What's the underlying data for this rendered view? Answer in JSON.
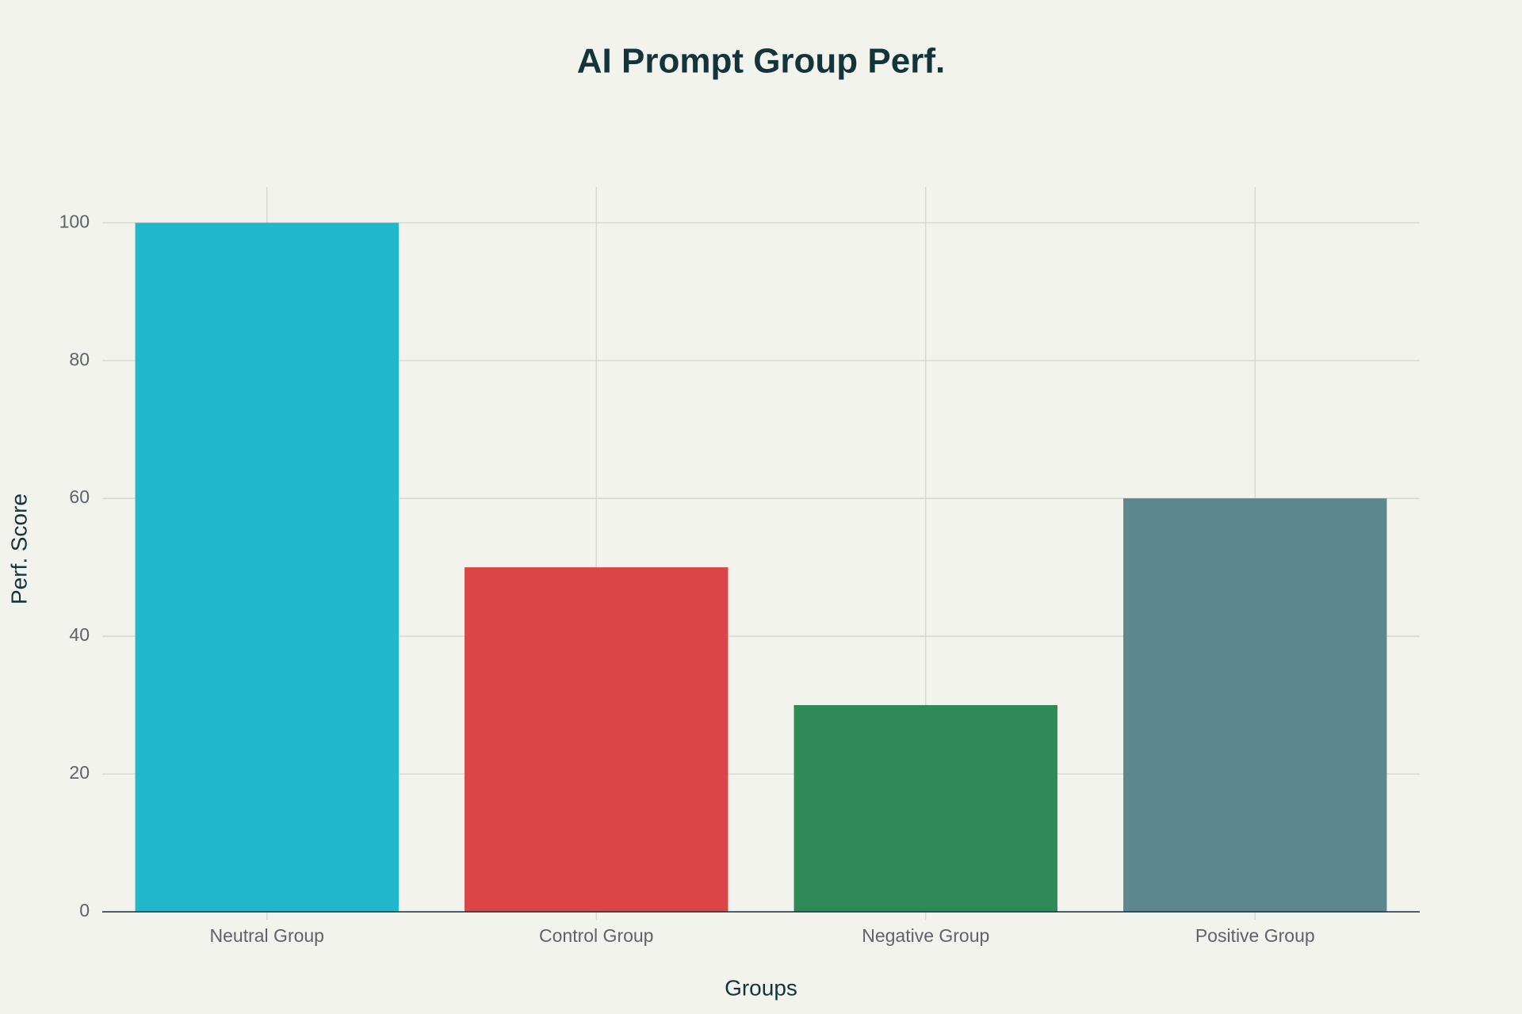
{
  "chart_data": {
    "type": "bar",
    "title": "AI Prompt Group Perf.",
    "x_label": "Groups",
    "y_label": "Perf. Score",
    "categories": [
      "Neutral Group",
      "Control Group",
      "Negative Group",
      "Positive Group"
    ],
    "values": [
      100,
      50,
      30,
      60
    ],
    "colors": [
      "#21b8cb",
      "#db4545",
      "#2e8b57",
      "#5d878f"
    ],
    "ylim": [
      0,
      105.2
    ],
    "yticks": [
      0,
      20,
      40,
      60,
      80,
      100
    ],
    "grid": true
  }
}
